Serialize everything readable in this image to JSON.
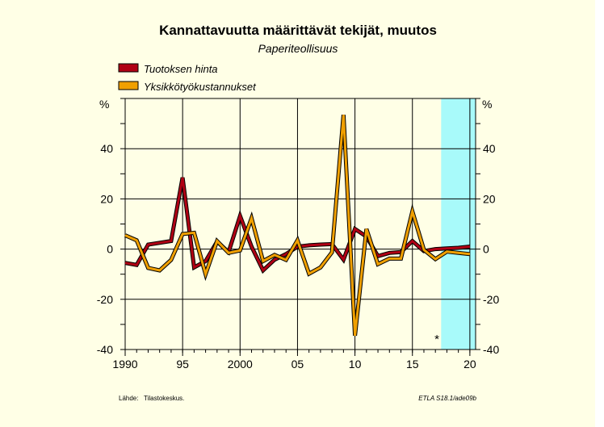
{
  "chart_data": {
    "type": "line",
    "title": "Kannattavuutta määrittävät tekijät, muutos",
    "subtitle": "Paperiteollisuus",
    "ylabel_left": "%",
    "ylabel_right": "%",
    "ylim": [
      -40,
      60
    ],
    "yticks": [
      40,
      20,
      0,
      -20,
      -40
    ],
    "xlim": [
      1990,
      2020.5
    ],
    "xticks": [
      {
        "value": 1990,
        "label": "1990"
      },
      {
        "value": 1995,
        "label": "95"
      },
      {
        "value": 2000,
        "label": "2000"
      },
      {
        "value": 2005,
        "label": "05"
      },
      {
        "value": 2010,
        "label": "10"
      },
      {
        "value": 2015,
        "label": "15"
      },
      {
        "value": 2020,
        "label": "20"
      }
    ],
    "forecast_start": 2017.5,
    "forecast_marker": "*",
    "colors": {
      "background": "#ffffe6",
      "forecast_band": "#a8fafa",
      "series_1": "#b00014",
      "series_2": "#f0a000",
      "outline": "#000000"
    },
    "x": [
      1990,
      1991,
      1992,
      1993,
      1994,
      1995,
      1996,
      1997,
      1998,
      1999,
      2000,
      2001,
      2002,
      2003,
      2004,
      2005,
      2006,
      2007,
      2008,
      2009,
      2010,
      2011,
      2012,
      2013,
      2014,
      2015,
      2016,
      2017,
      2018,
      2019,
      2020
    ],
    "series": [
      {
        "name": "Tuotoksen hinta",
        "values": [
          -5.5,
          -6.3,
          1.8,
          2.5,
          3.2,
          28.5,
          -7.3,
          -4.8,
          3.0,
          -1.2,
          13.2,
          1.0,
          -8.5,
          -4.2,
          -2.0,
          1.0,
          1.5,
          1.8,
          2.0,
          -4.2,
          8.0,
          5.0,
          -2.8,
          -1.5,
          -1.2,
          3.2,
          -0.8,
          0.0,
          0.3,
          0.5,
          1.0
        ]
      },
      {
        "name": "Yksikkötyökustannukset",
        "values": [
          5.5,
          3.5,
          -7.5,
          -8.5,
          -4.3,
          6.0,
          6.5,
          -10.0,
          3.2,
          -1.5,
          -0.5,
          12.3,
          -4.8,
          -2.3,
          -4.3,
          3.5,
          -9.8,
          -7.3,
          -1.3,
          53.5,
          -34.5,
          8.0,
          -6.0,
          -3.8,
          -3.8,
          15.0,
          -0.3,
          -4.0,
          -1.0,
          -1.5,
          -2.0
        ]
      }
    ],
    "source_label": "Lähde:",
    "source": "Tilastokeskus.",
    "code": "ETLA S18.1/ade09b"
  }
}
